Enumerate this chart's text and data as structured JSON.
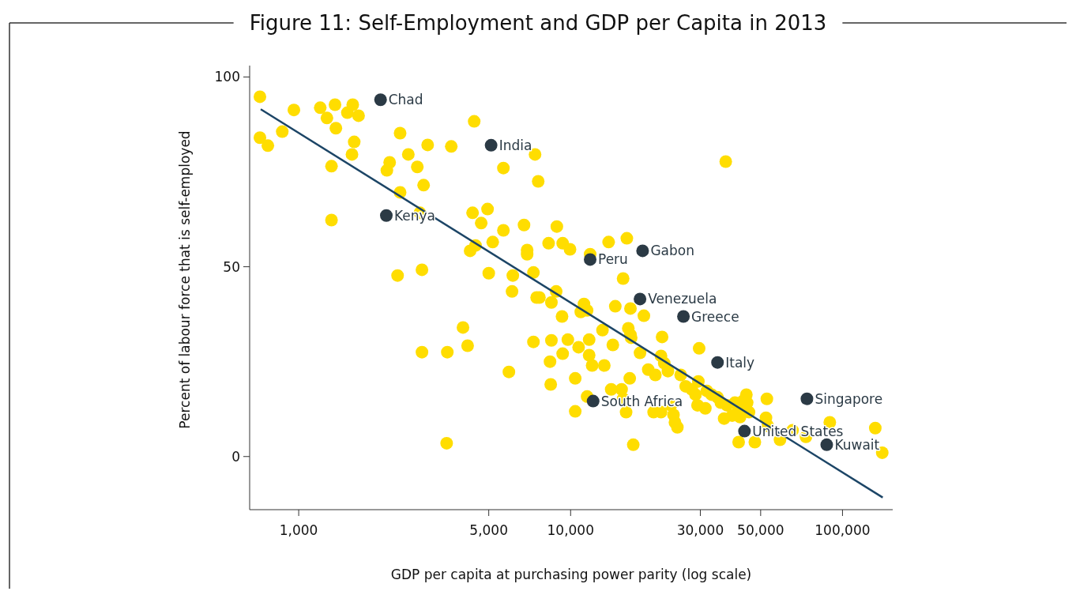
{
  "chart_data": {
    "type": "scatter",
    "title": "Figure 11: Self-Employment and GDP per Capita in 2013",
    "xlabel": "GDP per capita at purchasing power parity (log scale)",
    "ylabel": "Percent of labour force that is self-employed",
    "log": "x",
    "marker": "circle",
    "xlim": [
      660,
      153000
    ],
    "xticks": [
      {
        "value": 1000,
        "label": "1,000"
      },
      {
        "value": 5000,
        "label": "5,000"
      },
      {
        "value": 10000,
        "label": "10,000"
      },
      {
        "value": 30000,
        "label": "30,000"
      },
      {
        "value": 50000,
        "label": "50,000"
      },
      {
        "value": 100000,
        "label": "100,000"
      }
    ],
    "ylim": [
      -14,
      103
    ],
    "yticks": [
      0,
      50,
      100
    ],
    "series": [
      {
        "color": "#ffdd00",
        "x": [
          720,
          720,
          770,
          870,
          960,
          1200,
          1270,
          1360,
          1370,
          1510,
          1580,
          1660,
          1600,
          1570,
          1320,
          1320,
          2160,
          2110,
          2360,
          2530,
          2730,
          2980,
          2880,
          2360,
          2790,
          3640,
          4420,
          4360,
          4950,
          4690,
          4470,
          4270,
          5170,
          5660,
          5660,
          6740,
          6920,
          6920,
          7400,
          7600,
          7300,
          8300,
          8900,
          9350,
          9950,
          11800,
          13800,
          16100,
          15600,
          5000,
          6130,
          6090,
          2310,
          2840,
          7500,
          7680,
          8850,
          8500,
          9300,
          11200,
          10900,
          11500,
          14600,
          16600,
          18600,
          16300,
          16600,
          16700,
          21700,
          29700,
          13100,
          14300,
          11700,
          9770,
          10700,
          8500,
          7300,
          9350,
          11700,
          12000,
          13300,
          18000,
          21500,
          22100,
          22800,
          19300,
          20500,
          25400,
          26500,
          27900,
          29500,
          28800,
          31700,
          33000,
          34700,
          35700,
          29300,
          31300,
          37600,
          40200,
          41500,
          44300,
          42000,
          39300,
          36700,
          43000,
          44600,
          45300,
          52700,
          52300,
          53100,
          41500,
          47600,
          58900,
          65500,
          73400,
          89800,
          132000,
          140000,
          37200,
          4020,
          4180,
          3520,
          2840,
          3500,
          5930,
          8400,
          8450,
          10400,
          11500,
          10400,
          14100,
          15400,
          15600,
          16000,
          16500,
          17000,
          20200,
          21500,
          23400,
          23900,
          24200,
          24700
        ],
        "values": [
          94.8,
          84,
          81.9,
          85.6,
          91.3,
          91.9,
          89.2,
          92.7,
          86.5,
          90.6,
          92.7,
          89.8,
          82.9,
          79.6,
          76.5,
          62.3,
          77.5,
          75.4,
          85.2,
          79.6,
          76.3,
          82.1,
          71.5,
          69.6,
          64.2,
          81.7,
          88.3,
          64.2,
          65.2,
          61.5,
          55.6,
          54.2,
          56.5,
          76,
          59.6,
          61,
          54.4,
          53.3,
          79.6,
          72.5,
          48.5,
          56.2,
          60.6,
          56.2,
          54.6,
          53.3,
          56.5,
          57.5,
          46.9,
          48.3,
          47.7,
          43.5,
          47.7,
          49.2,
          41.9,
          41.9,
          43.5,
          40.6,
          36.9,
          40.2,
          38.1,
          38.5,
          39.6,
          39,
          37.1,
          33.8,
          32.1,
          31.3,
          31.5,
          28.5,
          33.3,
          29.4,
          30.8,
          30.8,
          28.8,
          30.6,
          30.2,
          27.1,
          26.7,
          24,
          24,
          27.3,
          26.5,
          24.6,
          22.5,
          22.9,
          21.5,
          21.5,
          18.5,
          17.7,
          19.8,
          16.3,
          17.3,
          16.3,
          15.6,
          14.2,
          13.5,
          12.7,
          13.5,
          14.2,
          12.5,
          16.3,
          10.4,
          10.8,
          10,
          14.6,
          14.2,
          11.7,
          15.2,
          10.2,
          8.1,
          3.8,
          3.8,
          4.4,
          6.9,
          5.2,
          9,
          7.5,
          1,
          77.7,
          34,
          29.2,
          27.5,
          27.5,
          3.5,
          22.3,
          25,
          19,
          20.6,
          15.8,
          11.9,
          17.7,
          17.7,
          15.2,
          11.7,
          20.6,
          3.1,
          11.7,
          11.7,
          13.5,
          11,
          9,
          7.7
        ]
      },
      {
        "type": "line",
        "color": "#1c4566",
        "marker": "none",
        "x": [
          725,
          140600
        ],
        "values": [
          91.5,
          -10.8
        ]
      },
      {
        "color": "#2b3a45",
        "x": [
          2000,
          5100,
          2100,
          11800,
          18400,
          18000,
          26000,
          34700,
          12100,
          74000,
          43600,
          87500
        ],
        "values": [
          94,
          82,
          63.5,
          51.9,
          54.2,
          41.5,
          36.9,
          24.8,
          14.6,
          15.2,
          6.7,
          3.1
        ]
      }
    ],
    "annotations": [
      {
        "text": "Chad",
        "x": 2000,
        "y": 94
      },
      {
        "text": "India",
        "x": 5100,
        "y": 82
      },
      {
        "text": "Kenya",
        "x": 2100,
        "y": 63.5
      },
      {
        "text": "Peru",
        "x": 11800,
        "y": 51.9
      },
      {
        "text": "Gabon",
        "x": 18400,
        "y": 54.2
      },
      {
        "text": "Venezuela",
        "x": 18000,
        "y": 41.5
      },
      {
        "text": "Greece",
        "x": 26000,
        "y": 36.9
      },
      {
        "text": "Italy",
        "x": 34700,
        "y": 24.8
      },
      {
        "text": "South Africa",
        "x": 12100,
        "y": 14.6
      },
      {
        "text": "Singapore",
        "x": 74000,
        "y": 15.2
      },
      {
        "text": "United States",
        "x": 43600,
        "y": 6.7
      },
      {
        "text": "Kuwait",
        "x": 87500,
        "y": 3.1
      }
    ]
  }
}
